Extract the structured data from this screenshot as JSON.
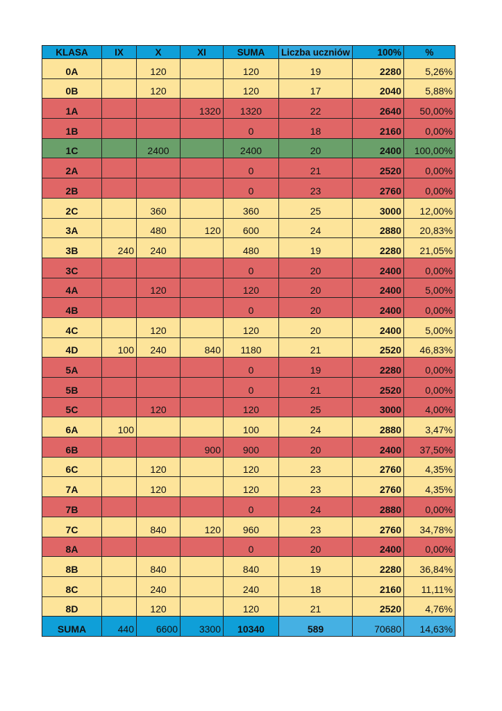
{
  "colors": {
    "header": "#0f9fd8",
    "yellow": "#fde49a",
    "red": "#e06666",
    "green": "#6aa06a",
    "light_blue": "#45b0e3"
  },
  "headers": [
    "KLASA",
    "IX",
    "X",
    "XI",
    "SUMA",
    "Liczba uczniów",
    "100%",
    "%"
  ],
  "rows": [
    [
      "0A",
      "",
      "120",
      "",
      "120",
      "19",
      "2280",
      "5,26%",
      "y"
    ],
    [
      "0B",
      "",
      "120",
      "",
      "120",
      "17",
      "2040",
      "5,88%",
      "y"
    ],
    [
      "1A",
      "",
      "",
      "1320",
      "1320",
      "22",
      "2640",
      "50,00%",
      "red"
    ],
    [
      "1B",
      "",
      "",
      "",
      "0",
      "18",
      "2160",
      "0,00%",
      "red"
    ],
    [
      "1C",
      "",
      "2400",
      "",
      "2400",
      "20",
      "2400",
      "100,00%",
      "g"
    ],
    [
      "2A",
      "",
      "",
      "",
      "0",
      "21",
      "2520",
      "0,00%",
      "red"
    ],
    [
      "2B",
      "",
      "",
      "",
      "0",
      "23",
      "2760",
      "0,00%",
      "red"
    ],
    [
      "2C",
      "",
      "360",
      "",
      "360",
      "25",
      "3000",
      "12,00%",
      "y"
    ],
    [
      "3A",
      "",
      "480",
      "120",
      "600",
      "24",
      "2880",
      "20,83%",
      "y"
    ],
    [
      "3B",
      "240",
      "240",
      "",
      "480",
      "19",
      "2280",
      "21,05%",
      "y"
    ],
    [
      "3C",
      "",
      "",
      "",
      "0",
      "20",
      "2400",
      "0,00%",
      "red"
    ],
    [
      "4A",
      "",
      "120",
      "",
      "120",
      "20",
      "2400",
      "5,00%",
      "red"
    ],
    [
      "4B",
      "",
      "",
      "",
      "0",
      "20",
      "2400",
      "0,00%",
      "red"
    ],
    [
      "4C",
      "",
      "120",
      "",
      "120",
      "20",
      "2400",
      "5,00%",
      "y"
    ],
    [
      "4D",
      "100",
      "240",
      "840",
      "1180",
      "21",
      "2520",
      "46,83%",
      "y"
    ],
    [
      "5A",
      "",
      "",
      "",
      "0",
      "19",
      "2280",
      "0,00%",
      "red"
    ],
    [
      "5B",
      "",
      "",
      "",
      "0",
      "21",
      "2520",
      "0,00%",
      "red"
    ],
    [
      "5C",
      "",
      "120",
      "",
      "120",
      "25",
      "3000",
      "4,00%",
      "red"
    ],
    [
      "6A",
      "100",
      "",
      "",
      "100",
      "24",
      "2880",
      "3,47%",
      "y"
    ],
    [
      "6B",
      "",
      "",
      "900",
      "900",
      "20",
      "2400",
      "37,50%",
      "red"
    ],
    [
      "6C",
      "",
      "120",
      "",
      "120",
      "23",
      "2760",
      "4,35%",
      "y"
    ],
    [
      "7A",
      "",
      "120",
      "",
      "120",
      "23",
      "2760",
      "4,35%",
      "y"
    ],
    [
      "7B",
      "",
      "",
      "",
      "0",
      "24",
      "2880",
      "0,00%",
      "red"
    ],
    [
      "7C",
      "",
      "840",
      "120",
      "960",
      "23",
      "2760",
      "34,78%",
      "y"
    ],
    [
      "8A",
      "",
      "",
      "",
      "0",
      "20",
      "2400",
      "0,00%",
      "red"
    ],
    [
      "8B",
      "",
      "840",
      "",
      "840",
      "19",
      "2280",
      "36,84%",
      "y"
    ],
    [
      "8C",
      "",
      "240",
      "",
      "240",
      "18",
      "2160",
      "11,11%",
      "y"
    ],
    [
      "8D",
      "",
      "120",
      "",
      "120",
      "21",
      "2520",
      "4,76%",
      "y"
    ]
  ],
  "total": [
    "SUMA",
    "440",
    "6600",
    "3300",
    "10340",
    "589",
    "70680",
    "14,63%"
  ]
}
